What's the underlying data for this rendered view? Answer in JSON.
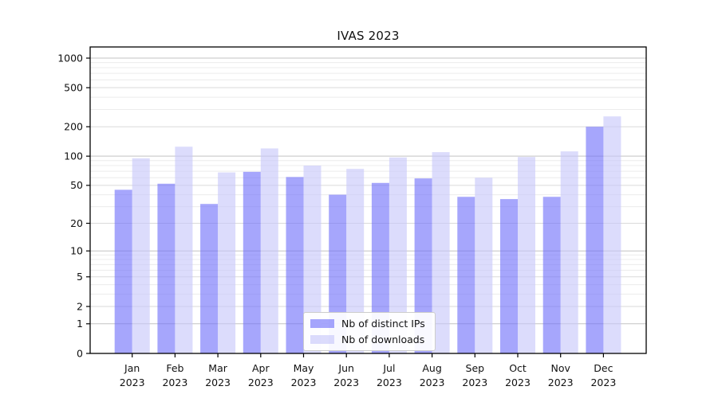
{
  "title": "IVAS 2023",
  "chart_data": {
    "type": "bar",
    "title": "IVAS 2023",
    "categories": [
      "Jan 2023",
      "Feb 2023",
      "Mar 2023",
      "Apr 2023",
      "May 2023",
      "Jun 2023",
      "Jul 2023",
      "Aug 2023",
      "Sep 2023",
      "Oct 2023",
      "Nov 2023",
      "Dec 2023"
    ],
    "series": [
      {
        "name": "Nb of distinct IPs",
        "color": "rgba(112,112,250,0.62)",
        "values": [
          45,
          52,
          32,
          69,
          61,
          40,
          53,
          59,
          38,
          36,
          38,
          200
        ]
      },
      {
        "name": "Nb of downloads",
        "color": "rgba(198,198,250,0.62)",
        "values": [
          95,
          125,
          68,
          120,
          80,
          74,
          97,
          110,
          60,
          98,
          112,
          255
        ]
      }
    ],
    "xlabel": "",
    "ylabel": "",
    "yscale": "symlog",
    "ylim": [
      0,
      1275
    ],
    "yticks": [
      0,
      1,
      2,
      5,
      10,
      20,
      50,
      100,
      200,
      500,
      1000
    ],
    "grid": {
      "on": true,
      "minor_values": [
        3,
        4,
        6,
        7,
        8,
        9,
        30,
        40,
        60,
        70,
        80,
        90,
        300,
        400,
        600,
        700,
        800,
        900
      ],
      "decade_values": [
        1,
        10,
        100,
        1000
      ]
    },
    "legend_position": "lower center"
  },
  "legend": {
    "items": [
      {
        "label": "Nb of distinct IPs"
      },
      {
        "label": "Nb of downloads"
      }
    ]
  },
  "colors": {
    "bar_dark": "rgba(112,112,250,0.62)",
    "bar_light": "rgba(198,198,250,0.62)",
    "grid_minor": "#ececec",
    "grid_major": "#dadada",
    "grid_decade": "#c3c3c3",
    "spine": "#000000",
    "text": "#111111"
  }
}
